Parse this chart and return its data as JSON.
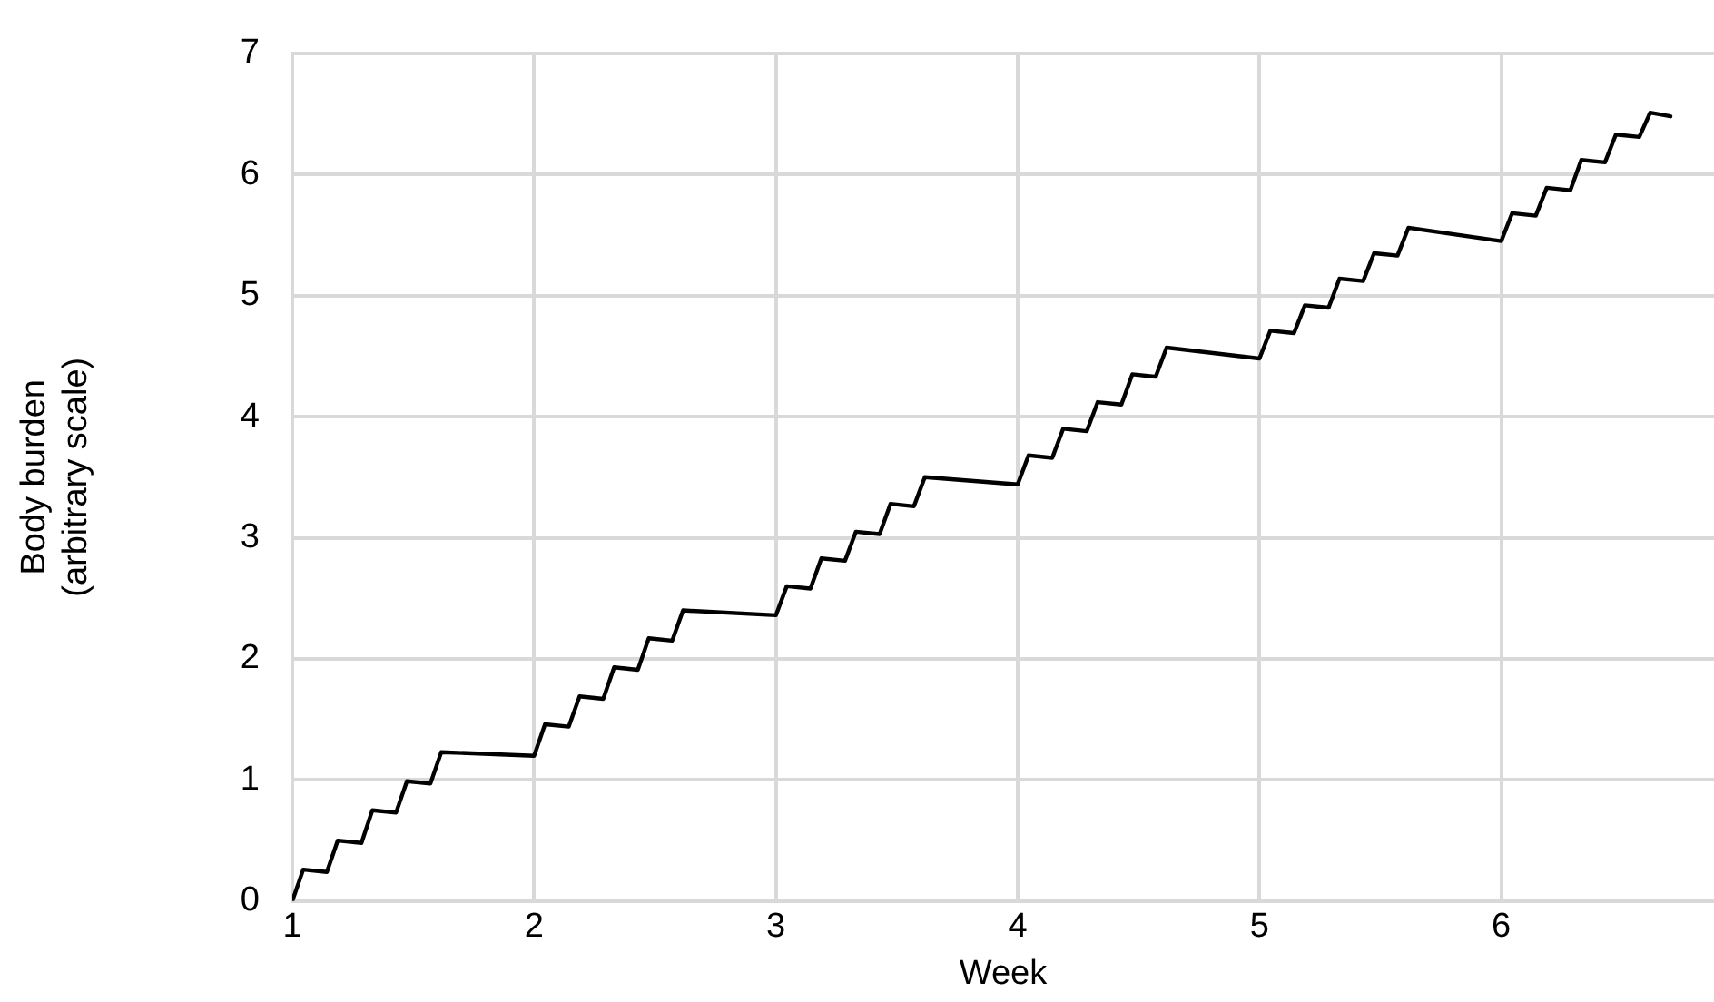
{
  "chart_data": {
    "type": "line",
    "xlabel": "Week",
    "ylabel": "Body burden\n(arbitrary scale)",
    "x": [
      1,
      1.045,
      1.143,
      1.188,
      1.286,
      1.331,
      1.429,
      1.474,
      1.571,
      1.616,
      2,
      2.045,
      2.143,
      2.188,
      2.286,
      2.331,
      2.429,
      2.474,
      2.571,
      2.616,
      3,
      3.045,
      3.143,
      3.188,
      3.286,
      3.331,
      3.429,
      3.474,
      3.571,
      3.616,
      4,
      4.045,
      4.143,
      4.188,
      4.286,
      4.331,
      4.429,
      4.474,
      4.571,
      4.616,
      5,
      5.045,
      5.143,
      5.188,
      5.286,
      5.331,
      5.429,
      5.474,
      5.571,
      5.616,
      6,
      6.045,
      6.143,
      6.188,
      6.286,
      6.331,
      6.429,
      6.474,
      6.571,
      6.616,
      6.7
    ],
    "series": [
      {
        "color": "#000000",
        "values": [
          0,
          0.26,
          0.24,
          0.5,
          0.48,
          0.75,
          0.73,
          0.99,
          0.97,
          1.23,
          1.2,
          1.46,
          1.44,
          1.69,
          1.67,
          1.93,
          1.91,
          2.17,
          2.15,
          2.4,
          2.36,
          2.6,
          2.58,
          2.83,
          2.81,
          3.05,
          3.03,
          3.28,
          3.26,
          3.5,
          3.44,
          3.68,
          3.66,
          3.9,
          3.88,
          4.12,
          4.1,
          4.35,
          4.33,
          4.57,
          4.48,
          4.71,
          4.69,
          4.92,
          4.9,
          5.14,
          5.12,
          5.35,
          5.33,
          5.56,
          5.45,
          5.68,
          5.66,
          5.89,
          5.87,
          6.12,
          6.1,
          6.33,
          6.31,
          6.51,
          6.48
        ]
      }
    ],
    "xlim": [
      1,
      6.88
    ],
    "xticks": [
      1,
      2,
      3,
      4,
      5,
      6
    ],
    "ylim": [
      0,
      7
    ],
    "yticks": [
      0,
      1,
      2,
      3,
      4,
      5,
      6,
      7
    ],
    "grid": true,
    "legend": false,
    "marker": "none",
    "line_style": "solid"
  }
}
